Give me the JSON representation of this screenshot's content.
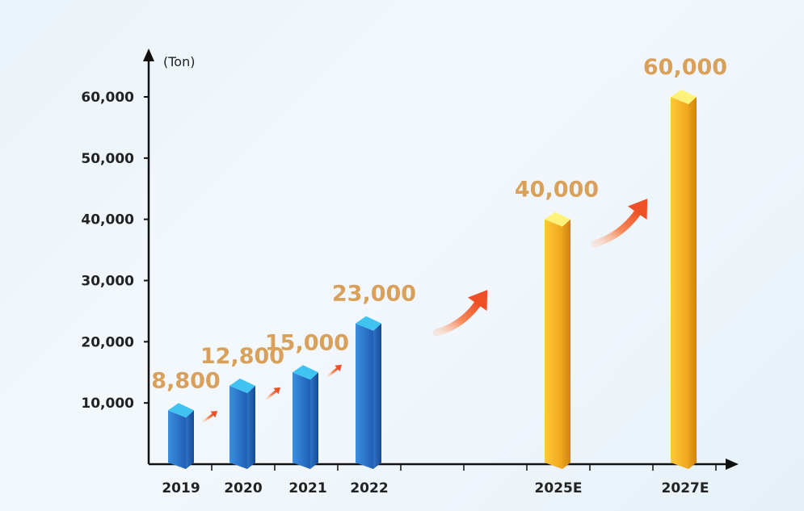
{
  "chart_data": {
    "type": "bar",
    "unit": "(Ton)",
    "categories": [
      "2019",
      "2020",
      "2021",
      "2022",
      "2025E",
      "2027E"
    ],
    "values": [
      8800,
      12800,
      15000,
      23000,
      40000,
      60000
    ],
    "value_labels": [
      "8,800",
      "12,800",
      "15,000",
      "23,000",
      "40,000",
      "60,000"
    ],
    "y_ticks": [
      {
        "value": 10000,
        "label": "10,000"
      },
      {
        "value": 20000,
        "label": "20,000"
      },
      {
        "value": 30000,
        "label": "30,000"
      },
      {
        "value": 40000,
        "label": "40,000"
      },
      {
        "value": 50000,
        "label": "50,000"
      },
      {
        "value": 60000,
        "label": "60,000"
      }
    ],
    "ylim": [
      0,
      60000
    ],
    "grid": false,
    "colors": {
      "actual": "#2a74c7",
      "actual_top": "#3fc4f2",
      "estimate": "#f2b01e",
      "estimate_top": "#fff27a",
      "value_label": "#d9a05a",
      "arrow": "#f05a30",
      "axis": "#111111"
    }
  }
}
